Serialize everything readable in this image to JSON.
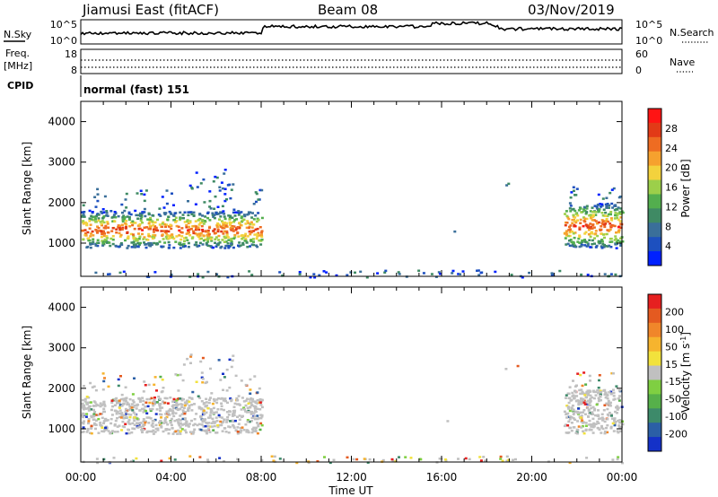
{
  "header": {
    "station": "Jiamusi East (fitACF)",
    "beam": "Beam 08",
    "date": "03/Nov/2019"
  },
  "params": {
    "nsky_label": "N.Sky",
    "nsky_ticks": [
      "10^5",
      "10^0"
    ],
    "nsearch_label": "N.Search",
    "freq_label": "Freq.",
    "freq_unit": "[MHz]",
    "freq_ticks": [
      "18",
      "8"
    ],
    "nave_label": "Nave",
    "nave_ticks": [
      "60",
      "0"
    ],
    "cpid_label": "CPID",
    "cpid_value": "normal (fast) 151"
  },
  "x_axis": {
    "label": "Time UT",
    "ticks": [
      "00:00",
      "04:00",
      "08:00",
      "12:00",
      "16:00",
      "20:00",
      "00:00"
    ],
    "range_hours": [
      0,
      24
    ]
  },
  "chart_data": [
    {
      "type": "heatmap",
      "panel": "power",
      "ylabel": "Slant Range [km]",
      "yticks": [
        1000,
        2000,
        3000,
        4000
      ],
      "ylim": [
        180,
        4500
      ],
      "xlim": [
        0,
        24
      ],
      "colorbar": {
        "label": "Power [dB]",
        "ticks": [
          "28",
          "24",
          "20",
          "16",
          "12",
          "8",
          "4"
        ],
        "colors": [
          "#0021ff",
          "#1d50bf",
          "#3a6f9a",
          "#3f8a64",
          "#53ae4e",
          "#9ccf4a",
          "#f3d23d",
          "#f6a12e",
          "#ee6c22",
          "#e23a17",
          "#ff1414"
        ]
      },
      "regions": [
        {
          "t0": 0.0,
          "t1": 8.0,
          "r0": 900,
          "r1": 1800,
          "level": "strong"
        },
        {
          "t0": 0.0,
          "t1": 8.0,
          "r0": 1800,
          "r1": 2400,
          "level": "weak"
        },
        {
          "t0": 4.5,
          "t1": 6.8,
          "r0": 2400,
          "r1": 2900,
          "level": "weak"
        },
        {
          "t0": 15.9,
          "t1": 16.6,
          "r0": 900,
          "r1": 1400,
          "level": "sparse"
        },
        {
          "t0": 18.6,
          "t1": 19.4,
          "r0": 2450,
          "r1": 2650,
          "level": "weak"
        },
        {
          "t0": 21.4,
          "t1": 24.0,
          "r0": 900,
          "r1": 2000,
          "level": "strong"
        },
        {
          "t0": 21.4,
          "t1": 24.0,
          "r0": 2000,
          "r1": 2500,
          "level": "weak"
        },
        {
          "t0": 0.0,
          "t1": 24.0,
          "r0": 180,
          "r1": 350,
          "level": "ground"
        }
      ]
    },
    {
      "type": "heatmap",
      "panel": "velocity",
      "ylabel": "Slant Range [km]",
      "yticks": [
        1000,
        2000,
        3000,
        4000
      ],
      "ylim": [
        180,
        4500
      ],
      "xlim": [
        0,
        24
      ],
      "colorbar": {
        "label": "Velocity [m s^-1]",
        "ticks": [
          "200",
          "100",
          "50",
          "15",
          "-15",
          "-50",
          "-100",
          "-200"
        ],
        "colors": [
          "#1431c8",
          "#2b5fa6",
          "#3d8a6a",
          "#56b04a",
          "#7fcf42",
          "#c0c0c0",
          "#f2e23c",
          "#f6b42e",
          "#f0862a",
          "#e45a20",
          "#e62020"
        ]
      },
      "regions": [
        {
          "t0": 0.0,
          "t1": 8.0,
          "r0": 900,
          "r1": 1800,
          "level": "strong"
        },
        {
          "t0": 0.0,
          "t1": 8.0,
          "r0": 1800,
          "r1": 2400,
          "level": "weak"
        },
        {
          "t0": 4.5,
          "t1": 6.8,
          "r0": 2400,
          "r1": 2900,
          "level": "weak"
        },
        {
          "t0": 15.9,
          "t1": 16.6,
          "r0": 900,
          "r1": 1400,
          "level": "sparse"
        },
        {
          "t0": 18.6,
          "t1": 19.4,
          "r0": 2450,
          "r1": 2650,
          "level": "weak"
        },
        {
          "t0": 21.4,
          "t1": 24.0,
          "r0": 900,
          "r1": 2000,
          "level": "strong"
        },
        {
          "t0": 21.4,
          "t1": 24.0,
          "r0": 2000,
          "r1": 2500,
          "level": "weak"
        },
        {
          "t0": 0.0,
          "t1": 24.0,
          "r0": 180,
          "r1": 350,
          "level": "ground"
        }
      ]
    }
  ]
}
